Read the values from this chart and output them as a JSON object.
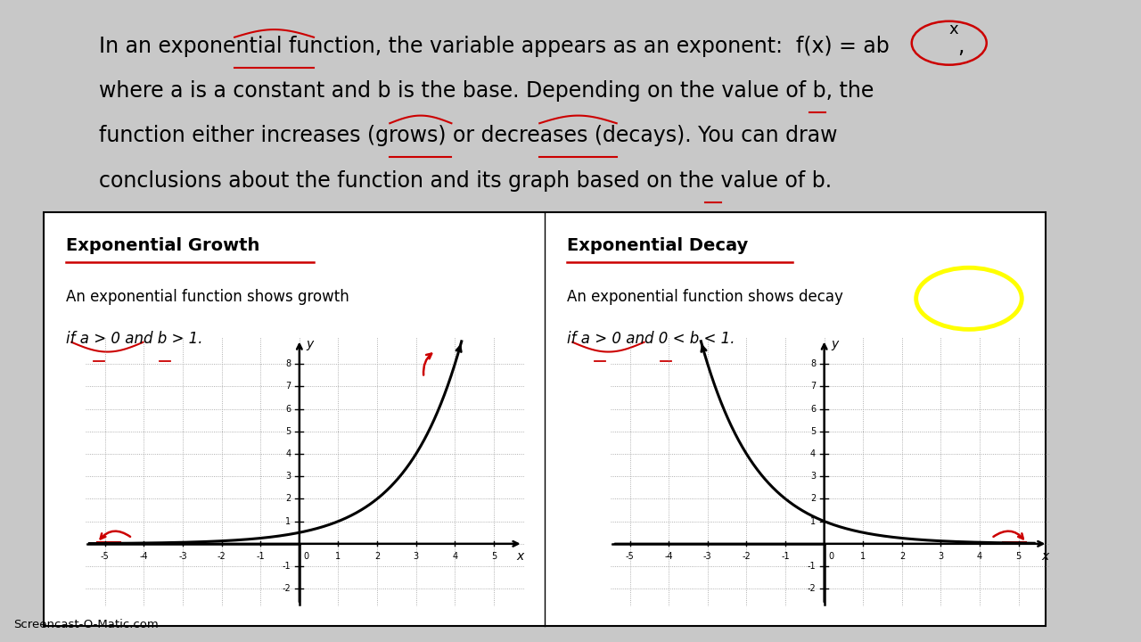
{
  "bg_color": "#ffffff",
  "outer_bg": "#c8c8c8",
  "text_lines": [
    "In an exponential function, the variable appears as an exponent:  f(x) = ab",
    "where a is a constant and b is the base. Depending on the value of b, the",
    "function either increases (grows) or decreases (decays). You can draw",
    "conclusions about the function and its graph based on the value of b."
  ],
  "font_size": 17,
  "left_panel": {
    "title": "Exponential Growth",
    "subtitle1": "An exponential function shows growth",
    "subtitle2": "if a > 0 and b > 1.",
    "x_range": [
      -5.5,
      5.8
    ],
    "y_range": [
      -2.8,
      9.2
    ],
    "base": 2.0,
    "scale": 0.5
  },
  "right_panel": {
    "title": "Exponential Decay",
    "subtitle1": "An exponential function shows decay",
    "subtitle2": "if a > 0 and 0 < b < 1.",
    "x_range": [
      -5.5,
      5.8
    ],
    "y_range": [
      -2.8,
      9.2
    ],
    "base": 0.5,
    "scale": 1.0
  },
  "watermark": "Screencast-O-Matic.com",
  "grid_color": "#bbbbbb",
  "curve_color": "#000000",
  "annotation_color": "#cc0000",
  "highlight_color": "#ffff00"
}
